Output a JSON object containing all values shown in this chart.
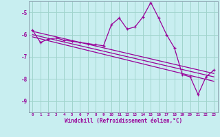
{
  "xlabel": "Windchill (Refroidissement éolien,°C)",
  "background_color": "#c8eef0",
  "grid_color": "#a0d4cc",
  "line_color": "#990099",
  "xlim": [
    -0.5,
    23.5
  ],
  "ylim": [
    -9.5,
    -4.5
  ],
  "yticks": [
    -9,
    -8,
    -7,
    -6,
    -5
  ],
  "xticks": [
    0,
    1,
    2,
    3,
    4,
    5,
    6,
    7,
    8,
    9,
    10,
    11,
    12,
    13,
    14,
    15,
    16,
    17,
    18,
    19,
    20,
    21,
    22,
    23
  ],
  "series1": [
    [
      0,
      -5.8
    ],
    [
      1,
      -6.35
    ],
    [
      2,
      -6.2
    ],
    [
      3,
      -6.15
    ],
    [
      4,
      -6.25
    ],
    [
      5,
      -6.3
    ],
    [
      6,
      -6.35
    ],
    [
      7,
      -6.4
    ],
    [
      8,
      -6.45
    ],
    [
      9,
      -6.5
    ],
    [
      10,
      -5.55
    ],
    [
      11,
      -5.25
    ],
    [
      12,
      -5.75
    ],
    [
      13,
      -5.65
    ],
    [
      14,
      -5.2
    ],
    [
      15,
      -4.55
    ],
    [
      16,
      -5.25
    ],
    [
      17,
      -6.0
    ],
    [
      18,
      -6.6
    ],
    [
      19,
      -7.8
    ],
    [
      20,
      -7.9
    ],
    [
      21,
      -8.7
    ],
    [
      22,
      -7.9
    ],
    [
      23,
      -7.6
    ]
  ],
  "series2_linear": [
    [
      0,
      -5.85
    ],
    [
      23,
      -7.75
    ]
  ],
  "series3_linear": [
    [
      0,
      -6.0
    ],
    [
      23,
      -7.9
    ]
  ],
  "series4_linear": [
    [
      0,
      -6.1
    ],
    [
      23,
      -8.1
    ]
  ]
}
